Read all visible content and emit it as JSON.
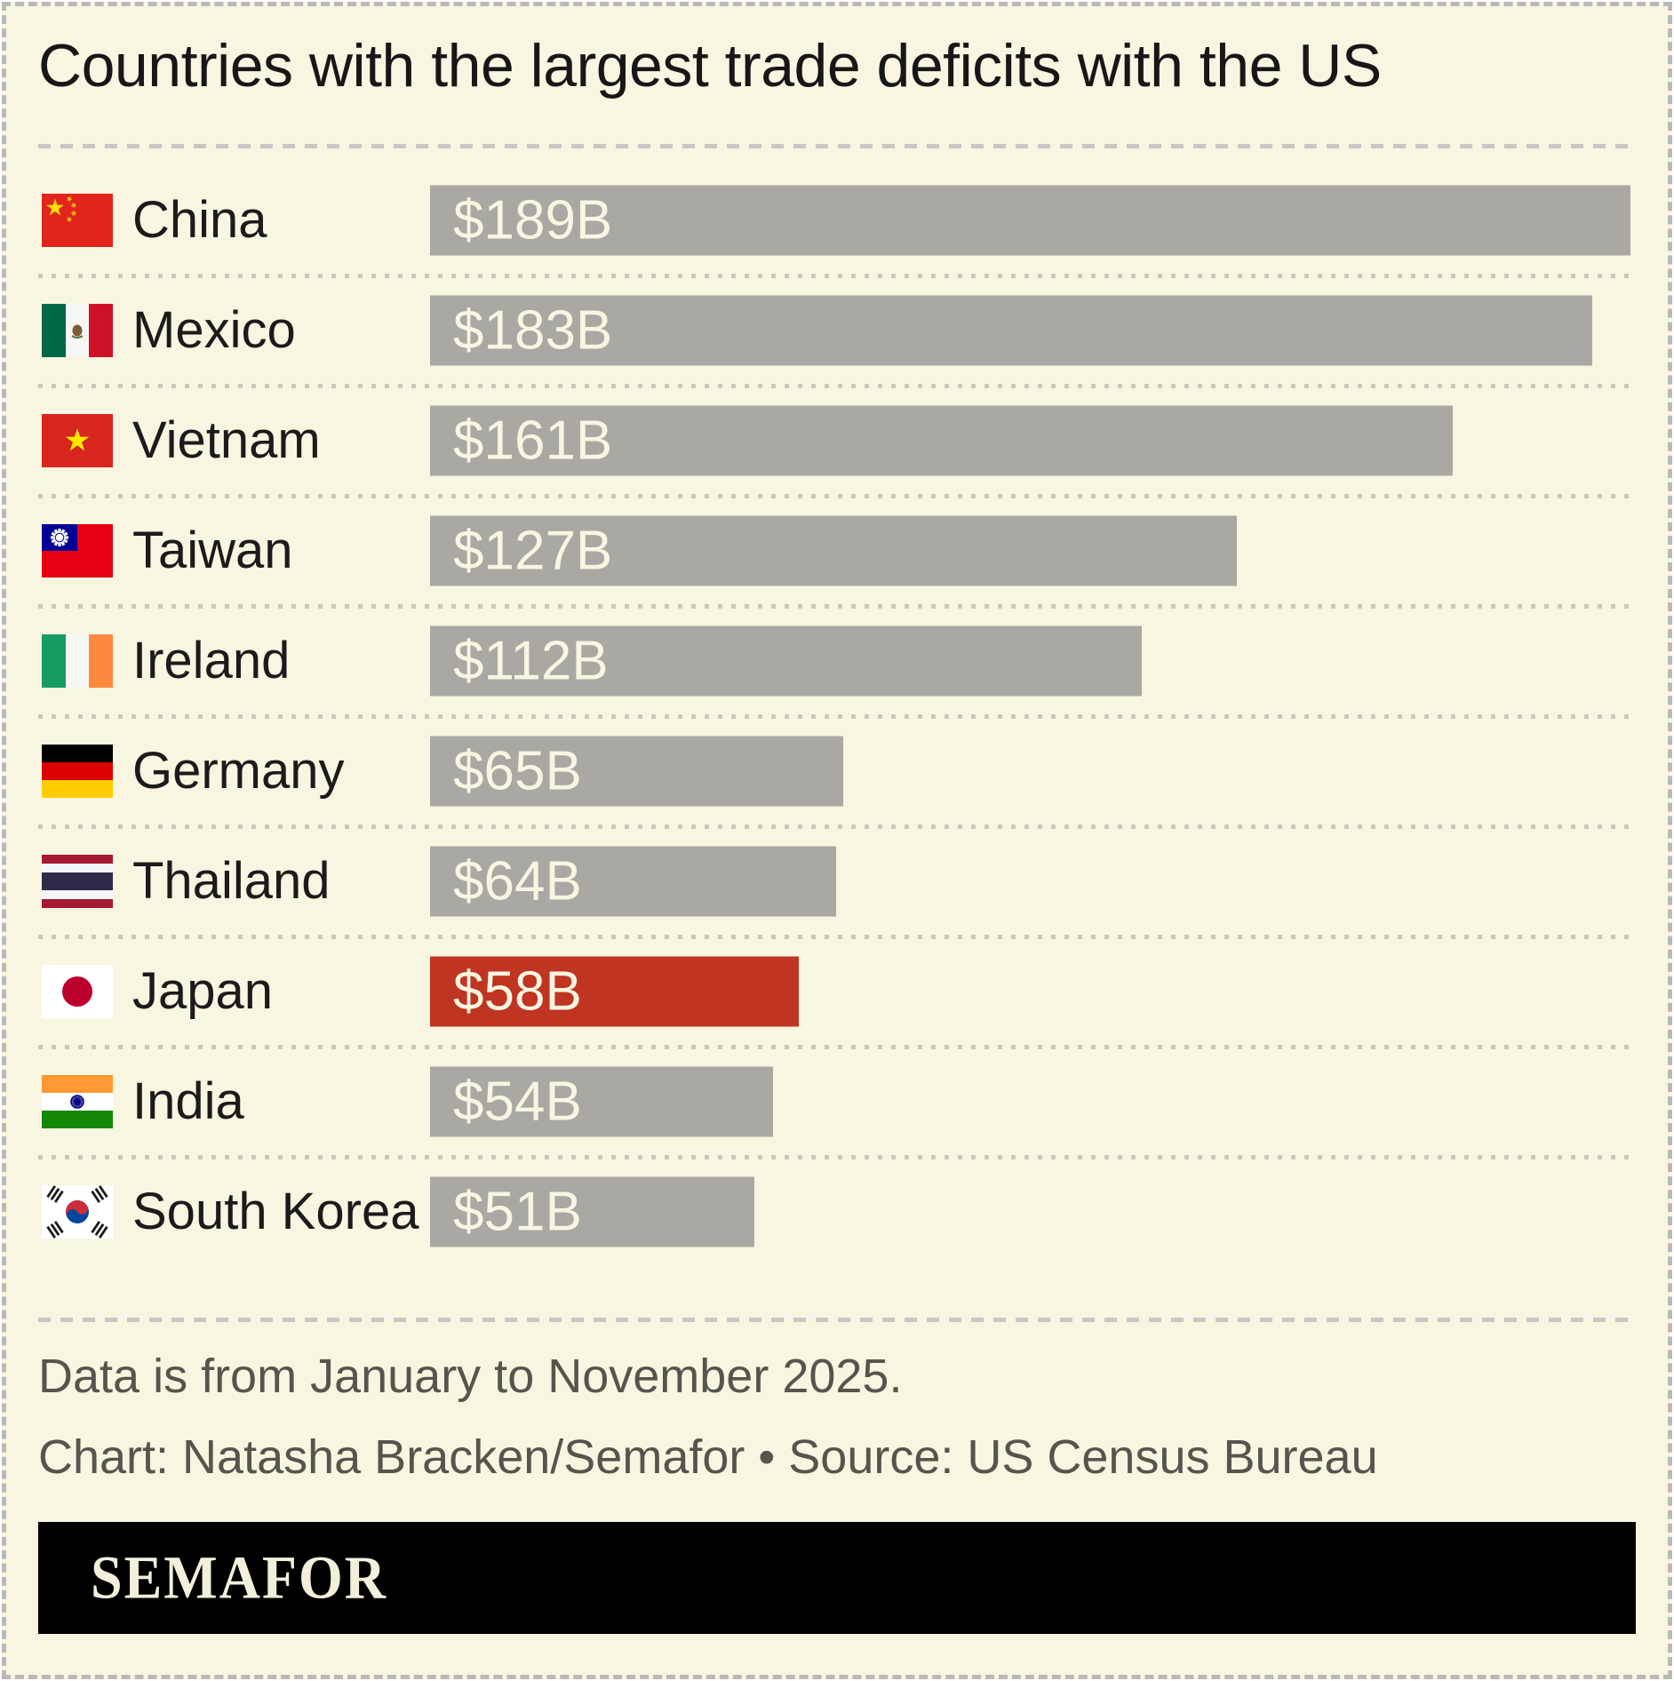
{
  "title": "Countries with the largest trade deficits with the US",
  "chart_data": {
    "type": "bar",
    "orientation": "horizontal",
    "title": "Countries with the largest trade deficits with the US",
    "categories": [
      "China",
      "Mexico",
      "Vietnam",
      "Taiwan",
      "Ireland",
      "Germany",
      "Thailand",
      "Japan",
      "India",
      "South Korea"
    ],
    "values": [
      189,
      183,
      161,
      127,
      112,
      65,
      64,
      58,
      54,
      51
    ],
    "value_labels": [
      "$189B",
      "$183B",
      "$161B",
      "$127B",
      "$112B",
      "$65B",
      "$64B",
      "$58B",
      "$54B",
      "$51B"
    ],
    "unit": "US$ billions",
    "xlim": [
      0,
      189
    ],
    "grid": "off",
    "legend": "none",
    "highlight_category": "Japan",
    "bar_color": "#a9a8a3",
    "highlight_color": "#bf3521",
    "value_label_color": "#f8f5e1"
  },
  "rows": [
    {
      "country": "China",
      "value": 189,
      "value_label": "$189B",
      "flag": "china",
      "highlight": false
    },
    {
      "country": "Mexico",
      "value": 183,
      "value_label": "$183B",
      "flag": "mexico",
      "highlight": false
    },
    {
      "country": "Vietnam",
      "value": 161,
      "value_label": "$161B",
      "flag": "vietnam",
      "highlight": false
    },
    {
      "country": "Taiwan",
      "value": 127,
      "value_label": "$127B",
      "flag": "taiwan",
      "highlight": false
    },
    {
      "country": "Ireland",
      "value": 112,
      "value_label": "$112B",
      "flag": "ireland",
      "highlight": false
    },
    {
      "country": "Germany",
      "value": 65,
      "value_label": "$65B",
      "flag": "germany",
      "highlight": false
    },
    {
      "country": "Thailand",
      "value": 64,
      "value_label": "$64B",
      "flag": "thailand",
      "highlight": false
    },
    {
      "country": "Japan",
      "value": 58,
      "value_label": "$58B",
      "flag": "japan",
      "highlight": true
    },
    {
      "country": "India",
      "value": 54,
      "value_label": "$54B",
      "flag": "india",
      "highlight": false
    },
    {
      "country": "South Korea",
      "value": 51,
      "value_label": "$51B",
      "flag": "south-korea",
      "highlight": false
    }
  ],
  "footer": {
    "note": "Data is from January to November 2025.",
    "credit": "Chart: Natasha Bracken/Semafor • Source: US Census Bureau"
  },
  "logo": {
    "text": "SEMAFOR"
  },
  "colors": {
    "background": "#f8f5e1",
    "text": "#171717",
    "footer_text": "#56554d",
    "banner_background": "#000000",
    "logo_text": "#f2efdb",
    "row_separator": "#cbc8bb",
    "section_separator": "#c7c7c3",
    "outer_border": "#b9b9b7"
  }
}
